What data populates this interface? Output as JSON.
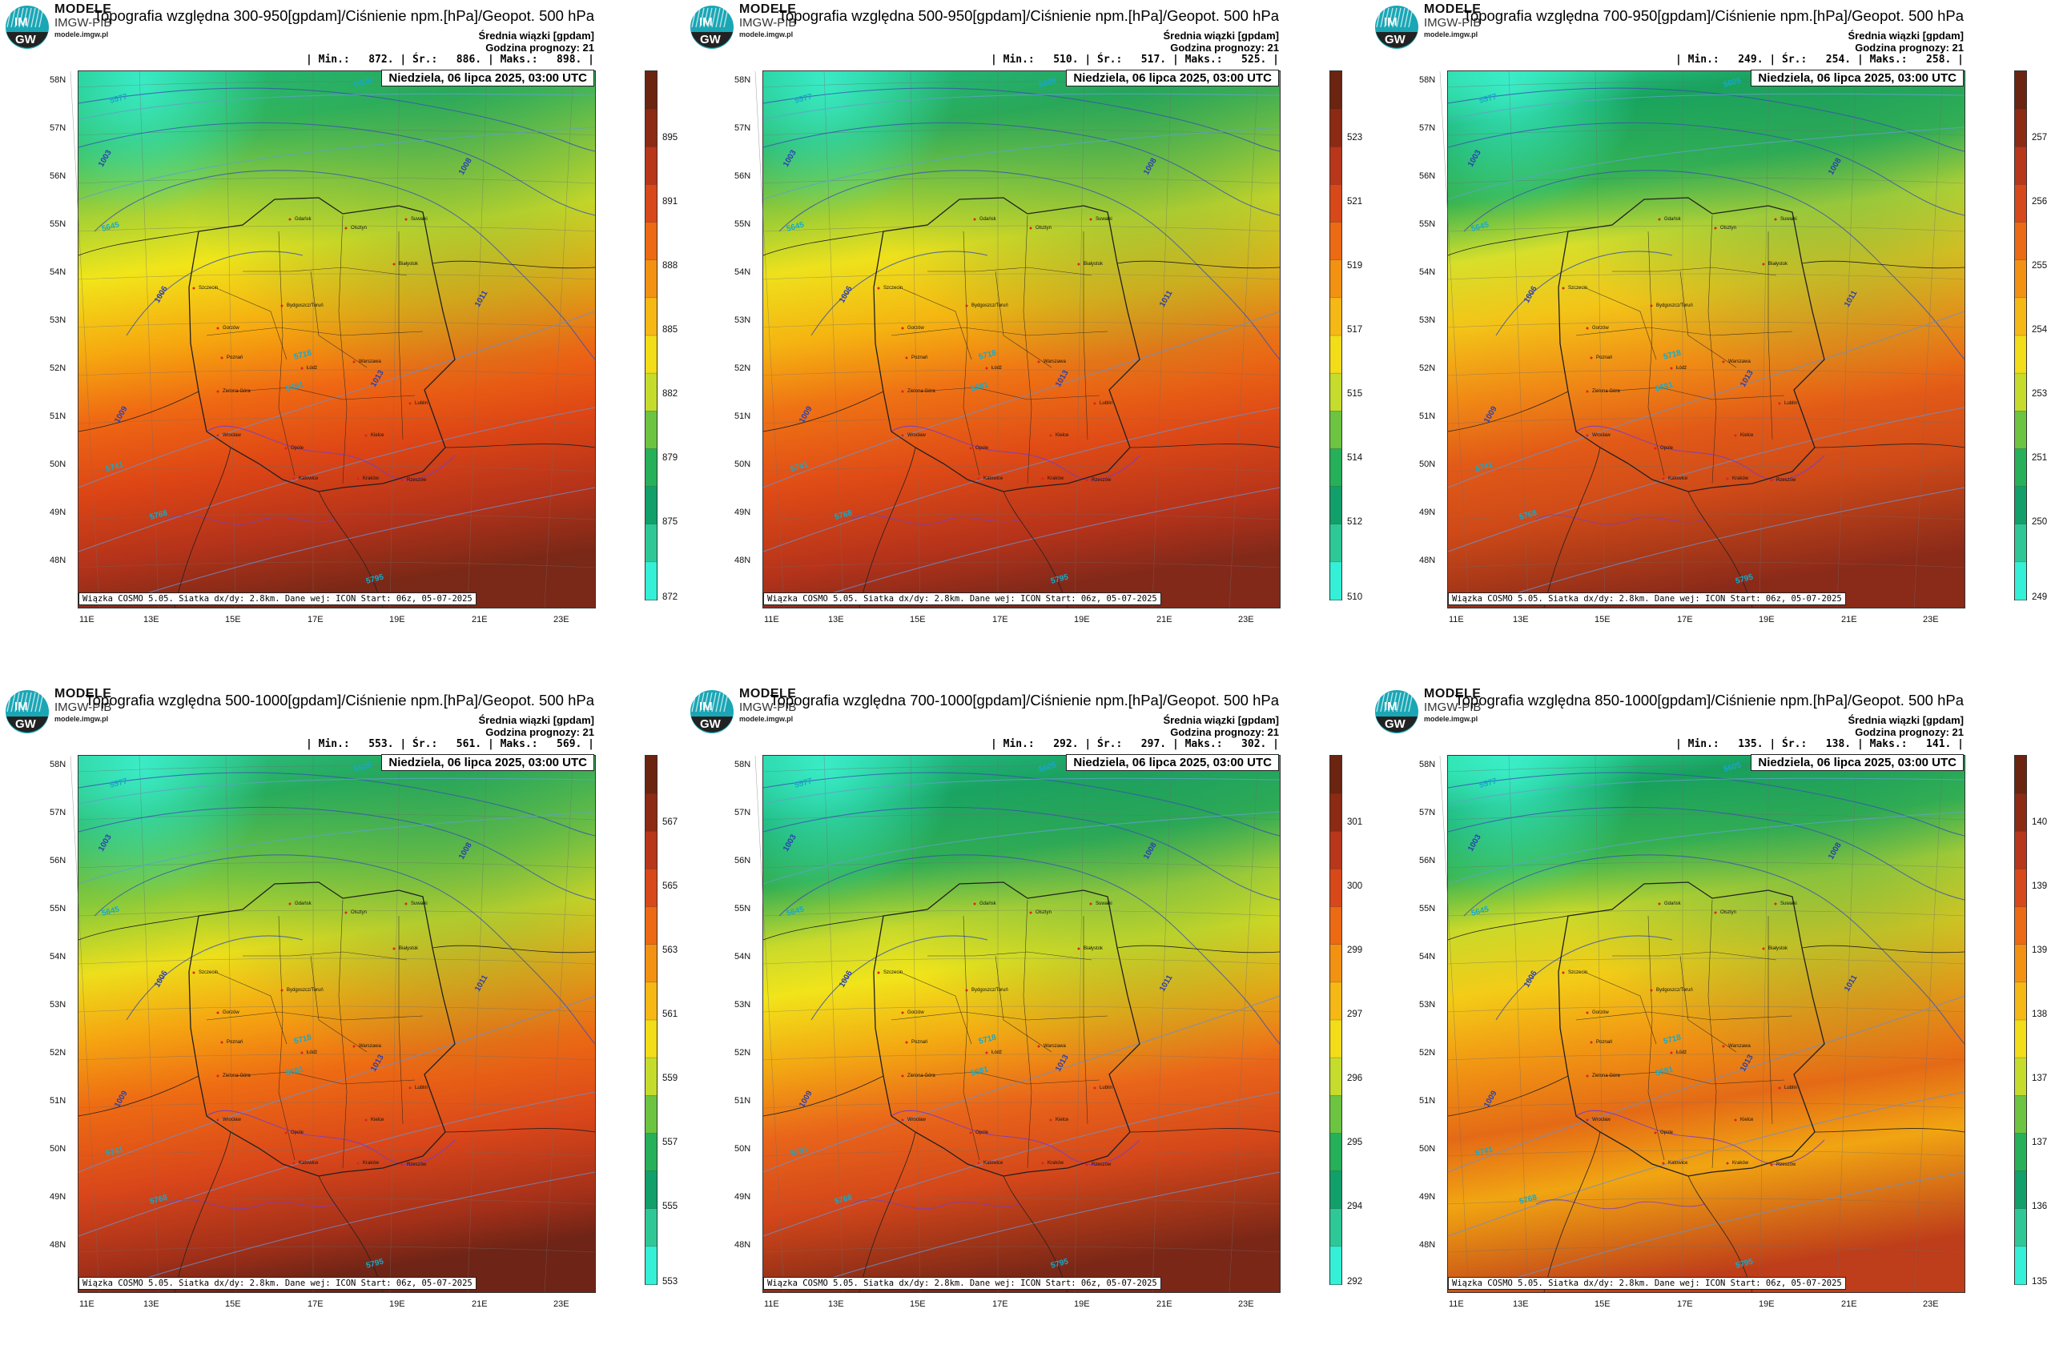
{
  "brand": {
    "line1": "MODELE",
    "line2": "IMGW-PIB",
    "line3": "modele.imgw.pl",
    "logo_text_top": "IM",
    "logo_text_bottom": "GW"
  },
  "common": {
    "subtitle1": "Średnia wiązki [gpdam]",
    "subtitle2": "Godzina prognozy: 21",
    "date": "Niedziela, 06 lipca 2025, 03:00 UTC",
    "footer": "Wiązka COSMO 5.05. Siatka dx/dy: 2.8km. Dane wej: ICON Start: 06z, 05-07-2025",
    "lat_labels": [
      "58N",
      "57N",
      "56N",
      "55N",
      "54N",
      "53N",
      "52N",
      "51N",
      "50N",
      "49N",
      "48N"
    ],
    "lon_labels": [
      "11E",
      "13E",
      "15E",
      "17E",
      "19E",
      "21E",
      "23E"
    ],
    "cities": [
      "Gdańsk",
      "Olsztyn",
      "Suwałki",
      "Białystok",
      "Szczecin",
      "Bydgoszcz/Toruń",
      "Gorzów",
      "Poznań",
      "Warszawa",
      "Łódź",
      "Zielona Góra",
      "Wrocław",
      "Opole",
      "Kielce",
      "Lublin",
      "Katowice",
      "Kraków",
      "Rzeszów"
    ],
    "isobars": [
      "1003",
      "1006",
      "1008",
      "1009",
      "1011",
      "1013"
    ],
    "geopot": [
      "5577",
      "5605",
      "5645",
      "5681",
      "5718",
      "5741",
      "5768",
      "5795"
    ]
  },
  "panels": [
    {
      "title": "Topografia względna 300-950[gpdam]/Ciśnienie npm.[hPa]/Geopot. 500 hPa",
      "stats": "| Min.:   872. | Śr.:   886. | Maks.:   898. |",
      "colorbar": [
        "895",
        "891",
        "888",
        "885",
        "882",
        "879",
        "875",
        "872"
      ]
    },
    {
      "title": "Topografia względna 500-950[gpdam]/Ciśnienie npm.[hPa]/Geopot. 500 hPa",
      "stats": "| Min.:   510. | Śr.:   517. | Maks.:   525. |",
      "colorbar": [
        "523",
        "521",
        "519",
        "517",
        "515",
        "514",
        "512",
        "510"
      ]
    },
    {
      "title": "Topografia względna 700-950[gpdam]/Ciśnienie npm.[hPa]/Geopot. 500 hPa",
      "stats": "| Min.:   249. | Śr.:   254. | Maks.:   258. |",
      "colorbar": [
        "257",
        "256",
        "255",
        "254",
        "253",
        "251",
        "250",
        "249"
      ]
    },
    {
      "title": "Topografia względna 500-1000[gpdam]/Ciśnienie npm.[hPa]/Geopot. 500 hPa",
      "stats": "| Min.:   553. | Śr.:   561. | Maks.:   569. |",
      "colorbar": [
        "567",
        "565",
        "563",
        "561",
        "559",
        "557",
        "555",
        "553"
      ]
    },
    {
      "title": "Topografia względna 700-1000[gpdam]/Ciśnienie npm.[hPa]/Geopot. 500 hPa",
      "stats": "| Min.:   292. | Śr.:   297. | Maks.:   302. |",
      "colorbar": [
        "301",
        "300",
        "299",
        "297",
        "296",
        "295",
        "294",
        "292"
      ]
    },
    {
      "title": "Topografia względna 850-1000[gpdam]/Ciśnienie npm.[hPa]/Geopot. 500 hPa",
      "stats": "| Min.:   135. | Śr.:   138. | Maks.:   141. |",
      "colorbar": [
        "140",
        "139",
        "139",
        "138",
        "137",
        "137",
        "136",
        "135"
      ]
    }
  ]
}
